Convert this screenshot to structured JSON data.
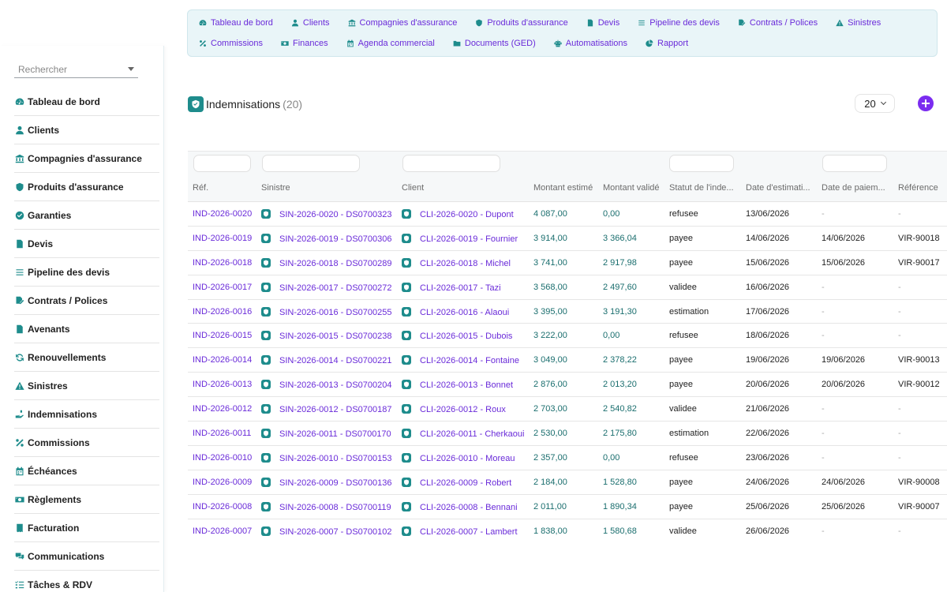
{
  "sidebar": {
    "search_placeholder": "Rechercher",
    "items": [
      {
        "label": "Tableau de bord",
        "icon": "gauge-icon"
      },
      {
        "label": "Clients",
        "icon": "user-icon"
      },
      {
        "label": "Compagnies d'assurance",
        "icon": "bank-icon"
      },
      {
        "label": "Produits d'assurance",
        "icon": "shield-icon"
      },
      {
        "label": "Garanties",
        "icon": "check-circle-icon"
      },
      {
        "label": "Devis",
        "icon": "file-icon"
      },
      {
        "label": "Pipeline des devis",
        "icon": "list-icon"
      },
      {
        "label": "Contrats / Polices",
        "icon": "file-signature-icon"
      },
      {
        "label": "Avenants",
        "icon": "file-icon"
      },
      {
        "label": "Renouvellements",
        "icon": "sync-icon"
      },
      {
        "label": "Sinistres",
        "icon": "warning-icon"
      },
      {
        "label": "Indemnisations",
        "icon": "hand-holding-icon"
      },
      {
        "label": "Commissions",
        "icon": "percent-icon"
      },
      {
        "label": "Échéances",
        "icon": "calendar-icon"
      },
      {
        "label": "Règlements",
        "icon": "money-icon"
      },
      {
        "label": "Facturation",
        "icon": "invoice-icon"
      },
      {
        "label": "Communications",
        "icon": "comments-icon"
      },
      {
        "label": "Tâches & RDV",
        "icon": "tasks-icon"
      }
    ]
  },
  "topnav": {
    "row1": [
      {
        "label": "Tableau de bord",
        "icon": "gauge-icon"
      },
      {
        "label": "Clients",
        "icon": "user-icon"
      },
      {
        "label": "Compagnies d'assurance",
        "icon": "bank-icon"
      },
      {
        "label": "Produits d'assurance",
        "icon": "shield-icon"
      },
      {
        "label": "Devis",
        "icon": "file-icon"
      },
      {
        "label": "Pipeline des devis",
        "icon": "list-icon"
      },
      {
        "label": "Contrats / Polices",
        "icon": "file-signature-icon"
      },
      {
        "label": "Sinistres",
        "icon": "warning-icon"
      }
    ],
    "row2": [
      {
        "label": "Commissions",
        "icon": "percent-icon"
      },
      {
        "label": "Finances",
        "icon": "money-icon"
      },
      {
        "label": "Agenda commercial",
        "icon": "calendar-icon"
      },
      {
        "label": "Documents (GED)",
        "icon": "folder-icon"
      },
      {
        "label": "Automatisations",
        "icon": "robot-icon"
      },
      {
        "label": "Rapport",
        "icon": "pie-chart-icon"
      }
    ]
  },
  "header": {
    "title": "Indemnisations",
    "count": "(20)",
    "page_size": "20"
  },
  "table": {
    "columns": [
      "Réf.",
      "Sinistre",
      "Client",
      "Montant estimé",
      "Montant validé",
      "Statut de l'inde...",
      "Date d'estimati...",
      "Date de paiem...",
      "Référence"
    ],
    "rows": [
      {
        "ref": "IND-2026-0020",
        "sinistre": "SIN-2026-0020 - DS0700323",
        "client": "CLI-2026-0020 - Dupont",
        "estime": "4 087,00",
        "valide": "0,00",
        "statut": "refusee",
        "date_est": "13/06/2026",
        "date_pay": "-",
        "reference": "-"
      },
      {
        "ref": "IND-2026-0019",
        "sinistre": "SIN-2026-0019 - DS0700306",
        "client": "CLI-2026-0019 - Fournier",
        "estime": "3 914,00",
        "valide": "3 366,04",
        "statut": "payee",
        "date_est": "14/06/2026",
        "date_pay": "14/06/2026",
        "reference": "VIR-90018"
      },
      {
        "ref": "IND-2026-0018",
        "sinistre": "SIN-2026-0018 - DS0700289",
        "client": "CLI-2026-0018 - Michel",
        "estime": "3 741,00",
        "valide": "2 917,98",
        "statut": "payee",
        "date_est": "15/06/2026",
        "date_pay": "15/06/2026",
        "reference": "VIR-90017"
      },
      {
        "ref": "IND-2026-0017",
        "sinistre": "SIN-2026-0017 - DS0700272",
        "client": "CLI-2026-0017 - Tazi",
        "estime": "3 568,00",
        "valide": "2 497,60",
        "statut": "validee",
        "date_est": "16/06/2026",
        "date_pay": "-",
        "reference": "-"
      },
      {
        "ref": "IND-2026-0016",
        "sinistre": "SIN-2026-0016 - DS0700255",
        "client": "CLI-2026-0016 - Alaoui",
        "estime": "3 395,00",
        "valide": "3 191,30",
        "statut": "estimation",
        "date_est": "17/06/2026",
        "date_pay": "-",
        "reference": "-"
      },
      {
        "ref": "IND-2026-0015",
        "sinistre": "SIN-2026-0015 - DS0700238",
        "client": "CLI-2026-0015 - Dubois",
        "estime": "3 222,00",
        "valide": "0,00",
        "statut": "refusee",
        "date_est": "18/06/2026",
        "date_pay": "-",
        "reference": "-"
      },
      {
        "ref": "IND-2026-0014",
        "sinistre": "SIN-2026-0014 - DS0700221",
        "client": "CLI-2026-0014 - Fontaine",
        "estime": "3 049,00",
        "valide": "2 378,22",
        "statut": "payee",
        "date_est": "19/06/2026",
        "date_pay": "19/06/2026",
        "reference": "VIR-90013"
      },
      {
        "ref": "IND-2026-0013",
        "sinistre": "SIN-2026-0013 - DS0700204",
        "client": "CLI-2026-0013 - Bonnet",
        "estime": "2 876,00",
        "valide": "2 013,20",
        "statut": "payee",
        "date_est": "20/06/2026",
        "date_pay": "20/06/2026",
        "reference": "VIR-90012"
      },
      {
        "ref": "IND-2026-0012",
        "sinistre": "SIN-2026-0012 - DS0700187",
        "client": "CLI-2026-0012 - Roux",
        "estime": "2 703,00",
        "valide": "2 540,82",
        "statut": "validee",
        "date_est": "21/06/2026",
        "date_pay": "-",
        "reference": "-"
      },
      {
        "ref": "IND-2026-0011",
        "sinistre": "SIN-2026-0011 - DS0700170",
        "client": "CLI-2026-0011 - Cherkaoui",
        "estime": "2 530,00",
        "valide": "2 175,80",
        "statut": "estimation",
        "date_est": "22/06/2026",
        "date_pay": "-",
        "reference": "-"
      },
      {
        "ref": "IND-2026-0010",
        "sinistre": "SIN-2026-0010 - DS0700153",
        "client": "CLI-2026-0010 - Moreau",
        "estime": "2 357,00",
        "valide": "0,00",
        "statut": "refusee",
        "date_est": "23/06/2026",
        "date_pay": "-",
        "reference": "-"
      },
      {
        "ref": "IND-2026-0009",
        "sinistre": "SIN-2026-0009 - DS0700136",
        "client": "CLI-2026-0009 - Robert",
        "estime": "2 184,00",
        "valide": "1 528,80",
        "statut": "payee",
        "date_est": "24/06/2026",
        "date_pay": "24/06/2026",
        "reference": "VIR-90008"
      },
      {
        "ref": "IND-2026-0008",
        "sinistre": "SIN-2026-0008 - DS0700119",
        "client": "CLI-2026-0008 - Bennani",
        "estime": "2 011,00",
        "valide": "1 890,34",
        "statut": "payee",
        "date_est": "25/06/2026",
        "date_pay": "25/06/2026",
        "reference": "VIR-90007"
      },
      {
        "ref": "IND-2026-0007",
        "sinistre": "SIN-2026-0007 - DS0700102",
        "client": "CLI-2026-0007 - Lambert",
        "estime": "1 838,00",
        "valide": "1 580,68",
        "statut": "validee",
        "date_est": "26/06/2026",
        "date_pay": "-",
        "reference": "-"
      }
    ]
  },
  "colors": {
    "accent": "#6a2bd9",
    "teal": "#1e8c8c",
    "add_button": "#7b2cf0",
    "nav_bg": "#e9f5f8"
  }
}
